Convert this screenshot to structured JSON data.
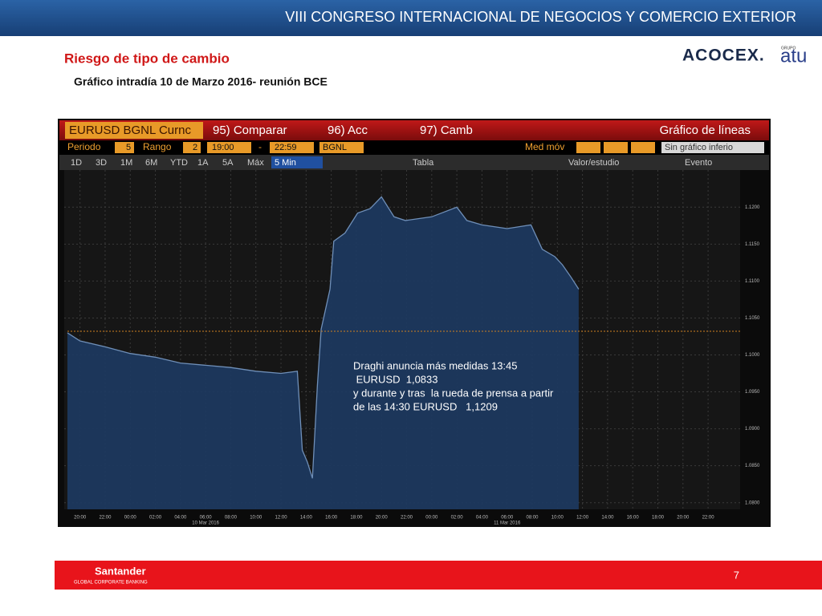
{
  "header": {
    "title": "VIII CONGRESO INTERNACIONAL DE NEGOCIOS Y COMERCIO EXTERIOR",
    "section": "Riesgo de tipo de cambio",
    "subtitle": "Gráfico intradía 10 de Marzo 2016- reunión BCE"
  },
  "logos": {
    "acocex": "ACOCEX.",
    "grupo": "GRUPO",
    "atu": "atu"
  },
  "terminal": {
    "security": "EURUSD BGNL Curnc",
    "buttons": [
      "95) Comparar",
      "96) Acc",
      "97) Camb"
    ],
    "chart_kind": "Gráfico de líneas",
    "period_label": "Periodo",
    "period": "5",
    "range_label": "Rango",
    "range": "2",
    "from": "19:00",
    "dash": "-",
    "to": "22:59",
    "source": "BGNL",
    "ma_label": "Med móv",
    "lower": "Sin gráfico inferio",
    "ranges": [
      "1D",
      "3D",
      "1M",
      "6M",
      "YTD",
      "1A",
      "5A",
      "Máx",
      "5 Min"
    ],
    "tools": [
      "Tabla",
      "Valor/estudio",
      "Evento"
    ]
  },
  "chart_data": {
    "type": "area",
    "color": "#6f8fb8",
    "fill": "#1d3a62",
    "reference_color": "#d08020",
    "reference_line": 1.1032,
    "grid": true,
    "x": [
      -5,
      -4,
      -2,
      0,
      2,
      4,
      6,
      8,
      10,
      12,
      13.3,
      13.7,
      14.1,
      14.5,
      14.9,
      15.2,
      15.9,
      16.2,
      17.1,
      18.1,
      19.1,
      20.0,
      21.0,
      21.9,
      24,
      26,
      26.8,
      28,
      30,
      31.9,
      32.8,
      33.8,
      34.4,
      35.1,
      35.7
    ],
    "values": [
      1.103,
      1.1019,
      1.1011,
      1.1002,
      1.0997,
      1.0989,
      1.0986,
      1.0983,
      1.0978,
      1.0975,
      1.0978,
      1.0871,
      1.0855,
      1.0833,
      1.0959,
      1.1035,
      1.1089,
      1.1154,
      1.1165,
      1.1192,
      1.1198,
      1.1214,
      1.1187,
      1.1182,
      1.1187,
      1.12,
      1.1182,
      1.1176,
      1.1171,
      1.1176,
      1.1143,
      1.1133,
      1.1122,
      1.1105,
      1.1089
    ],
    "xlim": [
      -5,
      48.55
    ],
    "ylim": [
      1.0791,
      1.1247
    ],
    "yticks": [
      {
        "value": 1.12,
        "label": "1.1200"
      },
      {
        "value": 1.115,
        "label": "1.1150"
      },
      {
        "value": 1.11,
        "label": "1.1100"
      },
      {
        "value": 1.105,
        "label": "1.1050"
      },
      {
        "value": 1.1,
        "label": "1.1000"
      },
      {
        "value": 1.095,
        "label": "1.0950"
      },
      {
        "value": 1.09,
        "label": "1.0900"
      },
      {
        "value": 1.085,
        "label": "1.0850"
      },
      {
        "value": 1.08,
        "label": "1.0800"
      }
    ],
    "xticks": [
      {
        "value": -4,
        "label": "20:00"
      },
      {
        "value": -2,
        "label": "22:00"
      },
      {
        "value": 0,
        "label": "00:00"
      },
      {
        "value": 2,
        "label": "02:00"
      },
      {
        "value": 4,
        "label": "04:00"
      },
      {
        "value": 6,
        "label": "06:00"
      },
      {
        "value": 8,
        "label": "08:00"
      },
      {
        "value": 10,
        "label": "10:00"
      },
      {
        "value": 12,
        "label": "12:00"
      },
      {
        "value": 14,
        "label": "14:00"
      },
      {
        "value": 16,
        "label": "16:00"
      },
      {
        "value": 18,
        "label": "18:00"
      },
      {
        "value": 20,
        "label": "20:00"
      },
      {
        "value": 22,
        "label": "22:00"
      },
      {
        "value": 24,
        "label": "00:00"
      },
      {
        "value": 26,
        "label": "02:00"
      },
      {
        "value": 28,
        "label": "04:00"
      },
      {
        "value": 30,
        "label": "06:00"
      },
      {
        "value": 32,
        "label": "08:00"
      },
      {
        "value": 34,
        "label": "10:00"
      },
      {
        "value": 36,
        "label": "12:00"
      },
      {
        "value": 38,
        "label": "14:00"
      },
      {
        "value": 40,
        "label": "16:00"
      },
      {
        "value": 42,
        "label": "18:00"
      },
      {
        "value": 44,
        "label": "20:00"
      },
      {
        "value": 46,
        "label": "22:00"
      }
    ],
    "date_labels": [
      {
        "value": 6,
        "label": "10 Mar 2016"
      },
      {
        "value": 30,
        "label": "11 Mar 2016"
      }
    ],
    "annotation": [
      "Draghi anuncia más medidas 13:45",
      " EURUSD  1,0833",
      "y durante y tras  la rueda de prensa a partir",
      "de las 14:30 EURUSD   1,1209"
    ]
  },
  "footer": {
    "bank": "Santander",
    "division": "GLOBAL CORPORATE BANKING",
    "page": "7"
  }
}
